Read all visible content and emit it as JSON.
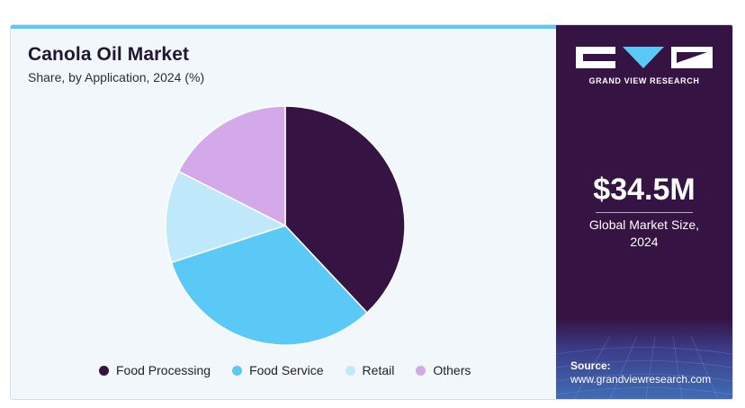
{
  "header": {
    "title": "Canola Oil Market",
    "subtitle": "Share, by Application, 2024 (%)"
  },
  "sidebar": {
    "brand": "GRAND VIEW RESEARCH",
    "value": "$34.5M",
    "caption_line1": "Global Market Size,",
    "caption_line2": "2024",
    "source_label": "Source:",
    "source_url": "www.grandviewresearch.com"
  },
  "chart_data": {
    "type": "pie",
    "title": "Canola Oil Market",
    "subtitle": "Share, by Application, 2024 (%)",
    "categories": [
      "Food Processing",
      "Food Service",
      "Retail",
      "Others"
    ],
    "values": [
      38,
      32,
      12.5,
      17.5
    ],
    "colors": [
      "#351342",
      "#5bc9f5",
      "#bfe9fb",
      "#d3a9ea"
    ],
    "legend_position": "bottom"
  },
  "colors": {
    "accent": "#5bc9f5",
    "panel": "#351342"
  }
}
